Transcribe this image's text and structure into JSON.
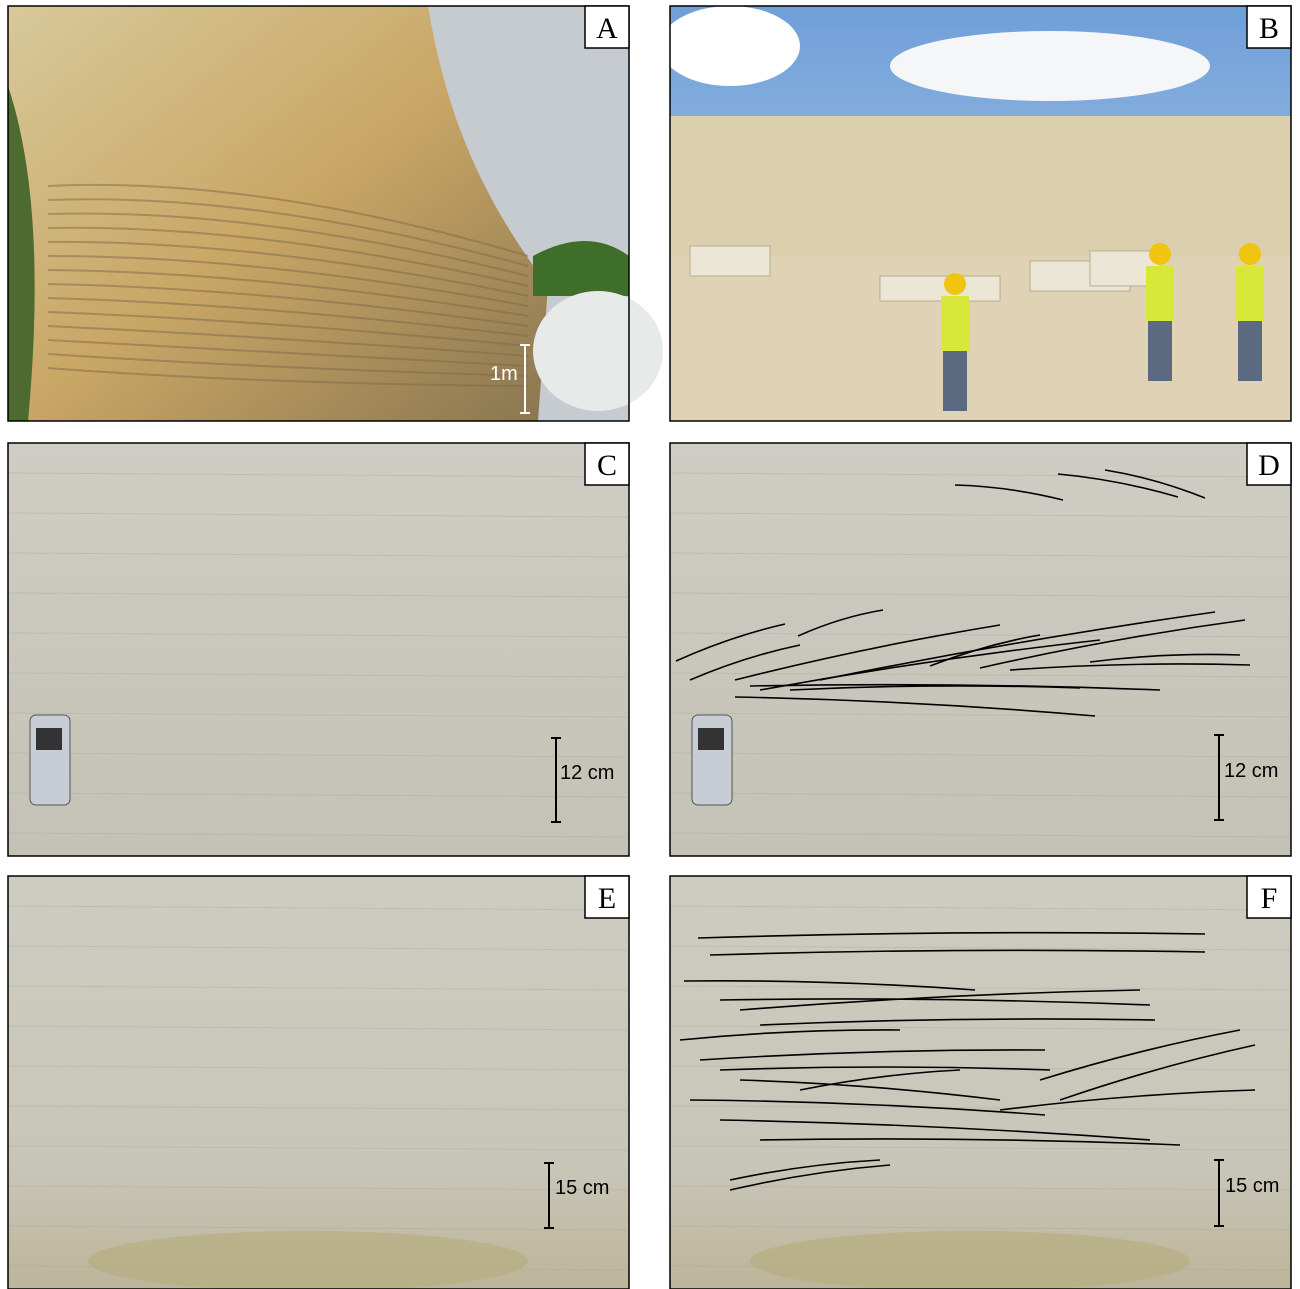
{
  "panels": [
    {
      "label": "A",
      "scale": "1m"
    },
    {
      "label": "B"
    },
    {
      "label": "C",
      "scale": "12 cm"
    },
    {
      "label": "D",
      "scale": "12 cm"
    },
    {
      "label": "E",
      "scale": "15 cm"
    },
    {
      "label": "F",
      "scale": "15 cm"
    }
  ]
}
